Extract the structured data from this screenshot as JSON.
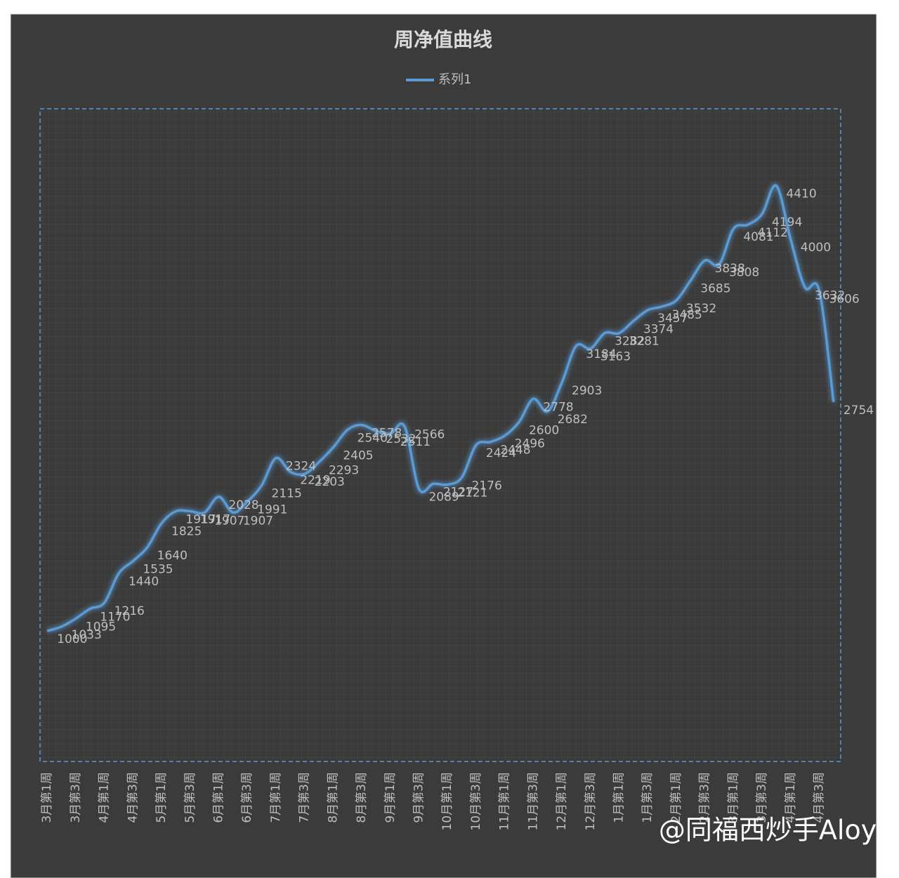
{
  "chart_data": {
    "type": "line",
    "title": "周净值曲线",
    "categories": [
      "3月第1周",
      null,
      "3月第3周",
      null,
      "4月第1周",
      null,
      "4月第3周",
      null,
      "5月第1周",
      null,
      "5月第3周",
      null,
      "6月第1周",
      null,
      "6月第3周",
      null,
      "7月第1周",
      null,
      "7月第3周",
      null,
      "8月第1周",
      null,
      "8月第3周",
      null,
      "9月第1周",
      null,
      "9月第3周",
      null,
      "10月第1周",
      null,
      "10月第3周",
      null,
      "11月第1周",
      null,
      "11月第3周",
      null,
      "12月第1周",
      null,
      "12月第3周",
      null,
      "1月第1周",
      null,
      "1月第3周",
      null,
      "2月第1周",
      null,
      "2月第3周",
      null,
      "3月第1周",
      null,
      "3月第3周",
      null,
      "4月第1周",
      null,
      "4月第3周",
      null
    ],
    "series": [
      {
        "name": "系列1",
        "color": "#5b9bd5",
        "values": [
          1000,
          1033,
          1095,
          1170,
          1216,
          1440,
          1535,
          1640,
          1825,
          1917,
          1917,
          1907,
          2028,
          1907,
          1991,
          2115,
          2324,
          2219,
          2203,
          2293,
          2405,
          2540,
          2578,
          2532,
          2511,
          2566,
          2089,
          2127,
          2121,
          2176,
          2424,
          2448,
          2496,
          2600,
          2778,
          2682,
          2903,
          3184,
          3163,
          3282,
          3281,
          3374,
          3457,
          3485,
          3532,
          3685,
          3838,
          3808,
          4081,
          4112,
          4194,
          4410,
          4000,
          3632,
          3606,
          2754
        ]
      }
    ],
    "ylim": [
      0,
      5000
    ],
    "grid": true,
    "legend": "top",
    "watermark": "@同福西炒手Aloys"
  }
}
